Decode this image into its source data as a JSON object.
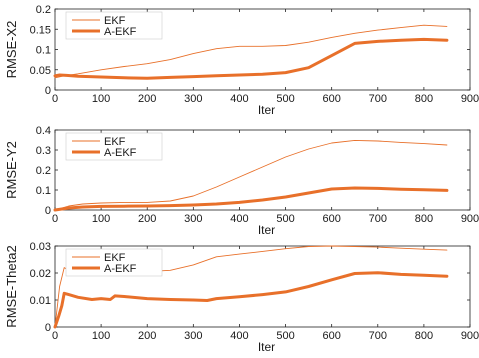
{
  "colors": {
    "series": "#e8702a",
    "axis": "#222222"
  },
  "chart_data": [
    {
      "type": "line",
      "xlabel": "Iter",
      "ylabel": "RMSE-X2",
      "xlim": [
        0,
        900
      ],
      "ylim": [
        0,
        0.2
      ],
      "xticks": [
        0,
        100,
        200,
        300,
        400,
        500,
        600,
        700,
        800,
        900
      ],
      "yticks": [
        0,
        0.05,
        0.1,
        0.15,
        0.2
      ],
      "ytick_labels": [
        "0",
        "0.05",
        "0.1",
        "0.15",
        "0.2"
      ],
      "legend": "top-left",
      "series": [
        {
          "name": "EKF",
          "x": [
            0,
            20,
            50,
            100,
            150,
            200,
            250,
            300,
            350,
            400,
            450,
            500,
            550,
            600,
            650,
            700,
            750,
            800,
            850
          ],
          "y": [
            0.03,
            0.035,
            0.04,
            0.05,
            0.058,
            0.065,
            0.075,
            0.09,
            0.102,
            0.108,
            0.108,
            0.11,
            0.118,
            0.13,
            0.14,
            0.148,
            0.154,
            0.16,
            0.157
          ]
        },
        {
          "name": "A-EKF",
          "x": [
            0,
            10,
            25,
            50,
            100,
            150,
            200,
            250,
            300,
            350,
            400,
            450,
            500,
            550,
            600,
            650,
            700,
            750,
            800,
            850
          ],
          "y": [
            0.035,
            0.037,
            0.036,
            0.034,
            0.032,
            0.03,
            0.029,
            0.031,
            0.033,
            0.035,
            0.037,
            0.039,
            0.043,
            0.055,
            0.085,
            0.115,
            0.12,
            0.123,
            0.125,
            0.123
          ]
        }
      ]
    },
    {
      "type": "line",
      "xlabel": "Iter",
      "ylabel": "RMSE-Y2",
      "xlim": [
        0,
        900
      ],
      "ylim": [
        0,
        0.4
      ],
      "xticks": [
        0,
        100,
        200,
        300,
        400,
        500,
        600,
        700,
        800,
        900
      ],
      "yticks": [
        0,
        0.1,
        0.2,
        0.3,
        0.4
      ],
      "ytick_labels": [
        "0",
        "0.1",
        "0.2",
        "0.3",
        "0.4"
      ],
      "legend": "top-left",
      "series": [
        {
          "name": "EKF",
          "x": [
            0,
            30,
            60,
            100,
            150,
            200,
            250,
            300,
            350,
            400,
            450,
            500,
            550,
            600,
            650,
            700,
            750,
            800,
            850
          ],
          "y": [
            0.0,
            0.02,
            0.03,
            0.035,
            0.038,
            0.038,
            0.045,
            0.07,
            0.115,
            0.165,
            0.215,
            0.265,
            0.305,
            0.335,
            0.348,
            0.345,
            0.338,
            0.332,
            0.325
          ]
        },
        {
          "name": "A-EKF",
          "x": [
            0,
            30,
            60,
            100,
            150,
            200,
            250,
            300,
            350,
            400,
            450,
            500,
            550,
            600,
            650,
            700,
            750,
            800,
            850
          ],
          "y": [
            0.0,
            0.01,
            0.015,
            0.018,
            0.019,
            0.02,
            0.022,
            0.025,
            0.03,
            0.038,
            0.05,
            0.065,
            0.085,
            0.105,
            0.11,
            0.108,
            0.104,
            0.101,
            0.098
          ]
        }
      ]
    },
    {
      "type": "line",
      "xlabel": "Iter",
      "ylabel": "RMSE-Theta2",
      "xlim": [
        0,
        900
      ],
      "ylim": [
        0,
        0.03
      ],
      "xticks": [
        0,
        100,
        200,
        300,
        400,
        500,
        600,
        700,
        800,
        900
      ],
      "yticks": [
        0,
        0.01,
        0.02,
        0.03
      ],
      "ytick_labels": [
        "0",
        "0.01",
        "0.02",
        "0.03"
      ],
      "legend": "top-left",
      "series": [
        {
          "name": "EKF",
          "x": [
            0,
            10,
            20,
            30,
            50,
            100,
            150,
            200,
            250,
            300,
            350,
            400,
            450,
            500,
            550,
            600,
            650,
            700,
            750,
            800,
            850
          ],
          "y": [
            0.0,
            0.015,
            0.022,
            0.021,
            0.021,
            0.0215,
            0.0212,
            0.0205,
            0.021,
            0.023,
            0.026,
            0.027,
            0.028,
            0.029,
            0.0298,
            0.03,
            0.0298,
            0.0296,
            0.0292,
            0.0288,
            0.0285
          ]
        },
        {
          "name": "A-EKF",
          "x": [
            0,
            8,
            15,
            20,
            30,
            50,
            80,
            100,
            120,
            130,
            150,
            200,
            250,
            300,
            330,
            350,
            400,
            450,
            500,
            550,
            600,
            650,
            700,
            750,
            800,
            850
          ],
          "y": [
            0.0,
            0.004,
            0.008,
            0.0125,
            0.012,
            0.011,
            0.0102,
            0.0105,
            0.0102,
            0.0115,
            0.0113,
            0.0105,
            0.0102,
            0.01,
            0.0098,
            0.0105,
            0.0112,
            0.012,
            0.013,
            0.015,
            0.0175,
            0.0198,
            0.0201,
            0.0195,
            0.0192,
            0.0188
          ]
        }
      ]
    }
  ]
}
